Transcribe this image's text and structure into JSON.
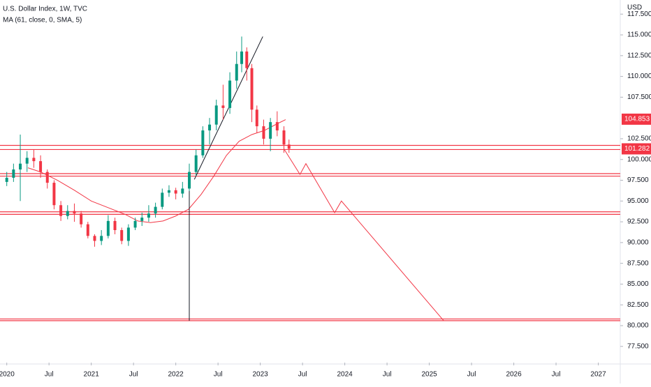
{
  "chart_data": {
    "type": "candlestick",
    "title": "U.S. Dollar Index, 1W, TVC",
    "indicator_label": "MA (61, close, 0, SMA, 5)",
    "currency": "USD",
    "up_color": "#089981",
    "down_color": "#f23645",
    "ma_color": "#f23645",
    "drawing_color": "#f23645",
    "trend_color": "#131722",
    "xlim": [
      2019.92,
      2027.26
    ],
    "ylim": [
      75.55,
      119.2
    ],
    "xticks": [
      2020,
      {
        "value": 2020.5,
        "label": "Jul"
      },
      2021,
      {
        "value": 2021.5,
        "label": "Jul"
      },
      2022,
      {
        "value": 2022.5,
        "label": "Jul"
      },
      2023,
      {
        "value": 2023.5,
        "label": "Jul"
      },
      2024,
      {
        "value": 2024.5,
        "label": "Jul"
      },
      2025,
      {
        "value": 2025.5,
        "label": "Jul"
      },
      2026,
      {
        "value": 2026.5,
        "label": "Jul"
      },
      2027
    ],
    "yticks": [
      {
        "value": 77.5,
        "label": "77.500"
      },
      {
        "value": 80,
        "label": "80.000"
      },
      {
        "value": 82.5,
        "label": "82.500"
      },
      {
        "value": 85,
        "label": "85.000"
      },
      {
        "value": 87.5,
        "label": "87.500"
      },
      {
        "value": 90,
        "label": "90.000"
      },
      {
        "value": 92.5,
        "label": "92.500"
      },
      {
        "value": 95,
        "label": "95.000"
      },
      {
        "value": 97.5,
        "label": "97.500"
      },
      {
        "value": 100,
        "label": "100.000"
      },
      {
        "value": 102.5,
        "label": "102.500"
      },
      {
        "value": 107.5,
        "label": "107.500"
      },
      {
        "value": 110,
        "label": "110.000"
      },
      {
        "value": 112.5,
        "label": "112.500"
      },
      {
        "value": 115,
        "label": "115.000"
      },
      {
        "value": 117.5,
        "label": "117.500"
      }
    ],
    "price_labels": [
      {
        "value": 104.853,
        "label": "104.853"
      },
      {
        "value": 101.282,
        "label": "101.282"
      }
    ],
    "candles": [
      {
        "x": 2020.0,
        "open": 97.3,
        "high": 98.5,
        "low": 96.8,
        "close": 97.8
      },
      {
        "x": 2020.08,
        "open": 97.8,
        "high": 99.5,
        "low": 97.3,
        "close": 98.8
      },
      {
        "x": 2020.16,
        "open": 98.8,
        "high": 103,
        "low": 95,
        "close": 99.5
      },
      {
        "x": 2020.24,
        "open": 99.5,
        "high": 101,
        "low": 98.5,
        "close": 100.2
      },
      {
        "x": 2020.32,
        "open": 100.2,
        "high": 101.2,
        "low": 99,
        "close": 99.8
      },
      {
        "x": 2020.4,
        "open": 99.8,
        "high": 100.5,
        "low": 97.8,
        "close": 98.5
      },
      {
        "x": 2020.48,
        "open": 98.5,
        "high": 98.8,
        "low": 96.5,
        "close": 97.2
      },
      {
        "x": 2020.56,
        "open": 97.2,
        "high": 97.5,
        "low": 94,
        "close": 94.5
      },
      {
        "x": 2020.64,
        "open": 94.5,
        "high": 95,
        "low": 92.6,
        "close": 93.2
      },
      {
        "x": 2020.72,
        "open": 93.2,
        "high": 94.5,
        "low": 92.8,
        "close": 93.8
      },
      {
        "x": 2020.8,
        "open": 93.8,
        "high": 94.7,
        "low": 92.5,
        "close": 93.5
      },
      {
        "x": 2020.88,
        "open": 93.5,
        "high": 93.8,
        "low": 91.8,
        "close": 92.2
      },
      {
        "x": 2020.96,
        "open": 92.2,
        "high": 92.5,
        "low": 90.5,
        "close": 90.8
      },
      {
        "x": 2021.04,
        "open": 90.8,
        "high": 91,
        "low": 89.5,
        "close": 90.2
      },
      {
        "x": 2021.12,
        "open": 90.2,
        "high": 91.5,
        "low": 89.7,
        "close": 90.8
      },
      {
        "x": 2021.2,
        "open": 90.8,
        "high": 93.3,
        "low": 90.5,
        "close": 92.6
      },
      {
        "x": 2021.28,
        "open": 92.6,
        "high": 93,
        "low": 91,
        "close": 91.5
      },
      {
        "x": 2021.36,
        "open": 91.5,
        "high": 91.8,
        "low": 89.8,
        "close": 90.2
      },
      {
        "x": 2021.44,
        "open": 90.2,
        "high": 92.2,
        "low": 89.6,
        "close": 91.8
      },
      {
        "x": 2021.52,
        "open": 91.8,
        "high": 93,
        "low": 91.5,
        "close": 92.6
      },
      {
        "x": 2021.6,
        "open": 92.6,
        "high": 93.6,
        "low": 92,
        "close": 93
      },
      {
        "x": 2021.68,
        "open": 93,
        "high": 94.5,
        "low": 92.5,
        "close": 93.5
      },
      {
        "x": 2021.76,
        "open": 93.5,
        "high": 94.8,
        "low": 93,
        "close": 94.3
      },
      {
        "x": 2021.84,
        "open": 94.3,
        "high": 96.5,
        "low": 94,
        "close": 96
      },
      {
        "x": 2021.92,
        "open": 96,
        "high": 96.9,
        "low": 95.5,
        "close": 96.3
      },
      {
        "x": 2022.0,
        "open": 96.3,
        "high": 96.6,
        "low": 95.2,
        "close": 95.9
      },
      {
        "x": 2022.08,
        "open": 95.9,
        "high": 97.3,
        "low": 95.4,
        "close": 96.5
      },
      {
        "x": 2022.16,
        "open": 96.5,
        "high": 99.5,
        "low": 96.2,
        "close": 98.5
      },
      {
        "x": 2022.24,
        "open": 98.5,
        "high": 101.2,
        "low": 98,
        "close": 100.5
      },
      {
        "x": 2022.32,
        "open": 100.5,
        "high": 104,
        "low": 100.2,
        "close": 103.5
      },
      {
        "x": 2022.4,
        "open": 103.5,
        "high": 105,
        "low": 101.8,
        "close": 104.2
      },
      {
        "x": 2022.48,
        "open": 104.2,
        "high": 107.2,
        "low": 103.5,
        "close": 106.5
      },
      {
        "x": 2022.56,
        "open": 106.5,
        "high": 109,
        "low": 104.8,
        "close": 106.2
      },
      {
        "x": 2022.64,
        "open": 106.2,
        "high": 110.5,
        "low": 105.5,
        "close": 109.5
      },
      {
        "x": 2022.72,
        "open": 109.5,
        "high": 113,
        "low": 108.5,
        "close": 111.5
      },
      {
        "x": 2022.78,
        "open": 111.5,
        "high": 114.8,
        "low": 110.5,
        "close": 113
      },
      {
        "x": 2022.84,
        "open": 113,
        "high": 113.5,
        "low": 109.5,
        "close": 111
      },
      {
        "x": 2022.9,
        "open": 111,
        "high": 111.5,
        "low": 104.5,
        "close": 106
      },
      {
        "x": 2022.96,
        "open": 106,
        "high": 106.5,
        "low": 103.2,
        "close": 104
      },
      {
        "x": 2023.04,
        "open": 104,
        "high": 104.8,
        "low": 101.8,
        "close": 102.5
      },
      {
        "x": 2023.12,
        "open": 102.5,
        "high": 105,
        "low": 101,
        "close": 104.5
      },
      {
        "x": 2023.2,
        "open": 104.5,
        "high": 105.8,
        "low": 102.8,
        "close": 103.5
      },
      {
        "x": 2023.28,
        "open": 103.5,
        "high": 104,
        "low": 100.8,
        "close": 101.8
      },
      {
        "x": 2023.34,
        "open": 101.8,
        "high": 102.4,
        "low": 100.8,
        "close": 101.3
      }
    ],
    "ma": {
      "x": [
        2020.25,
        2020.4,
        2020.6,
        2020.8,
        2021.0,
        2021.2,
        2021.4,
        2021.55,
        2021.7,
        2021.85,
        2022.0,
        2022.15,
        2022.3,
        2022.45,
        2022.6,
        2022.75,
        2022.9,
        2023.05,
        2023.2,
        2023.3
      ],
      "values": [
        99,
        98.5,
        97.5,
        96.3,
        95,
        94.2,
        93.4,
        92.6,
        92.4,
        92.6,
        93.2,
        94,
        95.8,
        98,
        100.5,
        102.2,
        103,
        103.5,
        104.3,
        104.8
      ]
    },
    "levels": [
      101.7,
      101.2,
      98.3,
      98.0,
      93.7,
      93.4,
      80.8,
      80.6
    ],
    "projection": {
      "x": [
        2023.28,
        2023.47,
        2023.54,
        2023.88,
        2023.96,
        2025.17
      ],
      "values": [
        101.28,
        98.2,
        99.5,
        93.6,
        95.0,
        80.6
      ]
    },
    "trendline": {
      "x": [
        2022.22,
        2023.03
      ],
      "values": [
        97.6,
        114.8
      ]
    },
    "vertical_line": {
      "x": 2022.16,
      "values": [
        97.6,
        80.6
      ]
    }
  }
}
